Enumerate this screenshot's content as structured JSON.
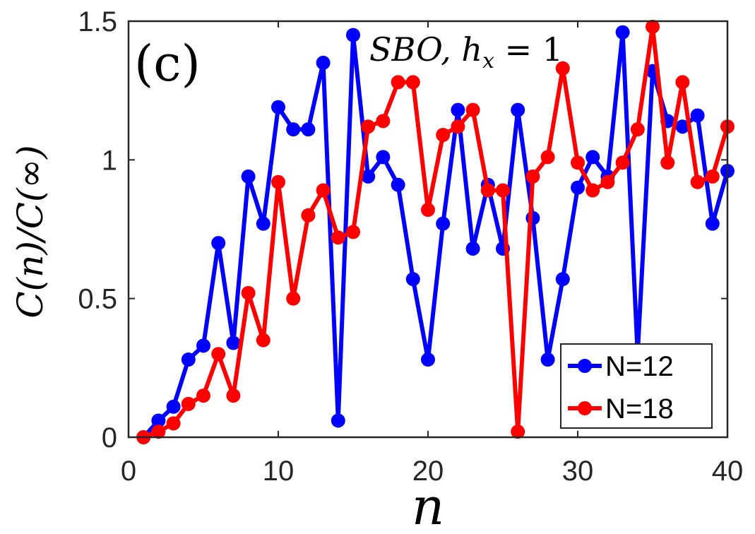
{
  "chart_data": {
    "type": "line",
    "panel_label": "(c)",
    "annotation": "SBO, h",
    "annotation_sub": "x",
    "annotation_tail": " = 1",
    "xlabel": "n",
    "ylabel": "C(n)/C(∞)",
    "xlim": [
      0,
      40
    ],
    "ylim": [
      0,
      1.5
    ],
    "xticks": [
      0,
      10,
      20,
      30,
      40
    ],
    "xtick_labels": [
      "0",
      "10",
      "20",
      "30",
      "40"
    ],
    "yticks": [
      0,
      0.5,
      1,
      1.5
    ],
    "ytick_labels": [
      "0",
      "0.5",
      "1",
      "1.5"
    ],
    "legend_position": "bottom-right",
    "x": [
      1,
      2,
      3,
      4,
      5,
      6,
      7,
      8,
      9,
      10,
      11,
      12,
      13,
      14,
      15,
      16,
      17,
      18,
      19,
      20,
      21,
      22,
      23,
      24,
      25,
      26,
      27,
      28,
      29,
      30,
      31,
      32,
      33,
      34,
      35,
      36,
      37,
      38,
      39,
      40
    ],
    "series": [
      {
        "name": "N=12",
        "color": "#0000ff",
        "values": [
          0.0,
          0.06,
          0.11,
          0.28,
          0.33,
          0.7,
          0.34,
          0.94,
          0.77,
          1.19,
          1.11,
          1.11,
          1.35,
          0.06,
          1.45,
          0.94,
          1.01,
          0.91,
          0.57,
          0.28,
          0.77,
          1.18,
          0.68,
          0.91,
          0.68,
          1.18,
          0.79,
          0.28,
          0.57,
          0.9,
          1.01,
          0.94,
          1.46,
          0.3,
          1.32,
          1.14,
          1.12,
          1.16,
          0.77,
          0.96
        ]
      },
      {
        "name": "N=18",
        "color": "#ff0000",
        "values": [
          0.0,
          0.02,
          0.05,
          0.12,
          0.15,
          0.3,
          0.15,
          0.52,
          0.35,
          0.92,
          0.5,
          0.8,
          0.89,
          0.72,
          0.74,
          1.12,
          1.14,
          1.28,
          1.28,
          0.82,
          1.09,
          1.12,
          1.18,
          0.89,
          0.89,
          0.02,
          0.94,
          1.01,
          1.33,
          0.99,
          0.89,
          0.92,
          0.99,
          1.11,
          1.48,
          0.99,
          1.28,
          0.92,
          0.94,
          1.12
        ]
      }
    ]
  }
}
